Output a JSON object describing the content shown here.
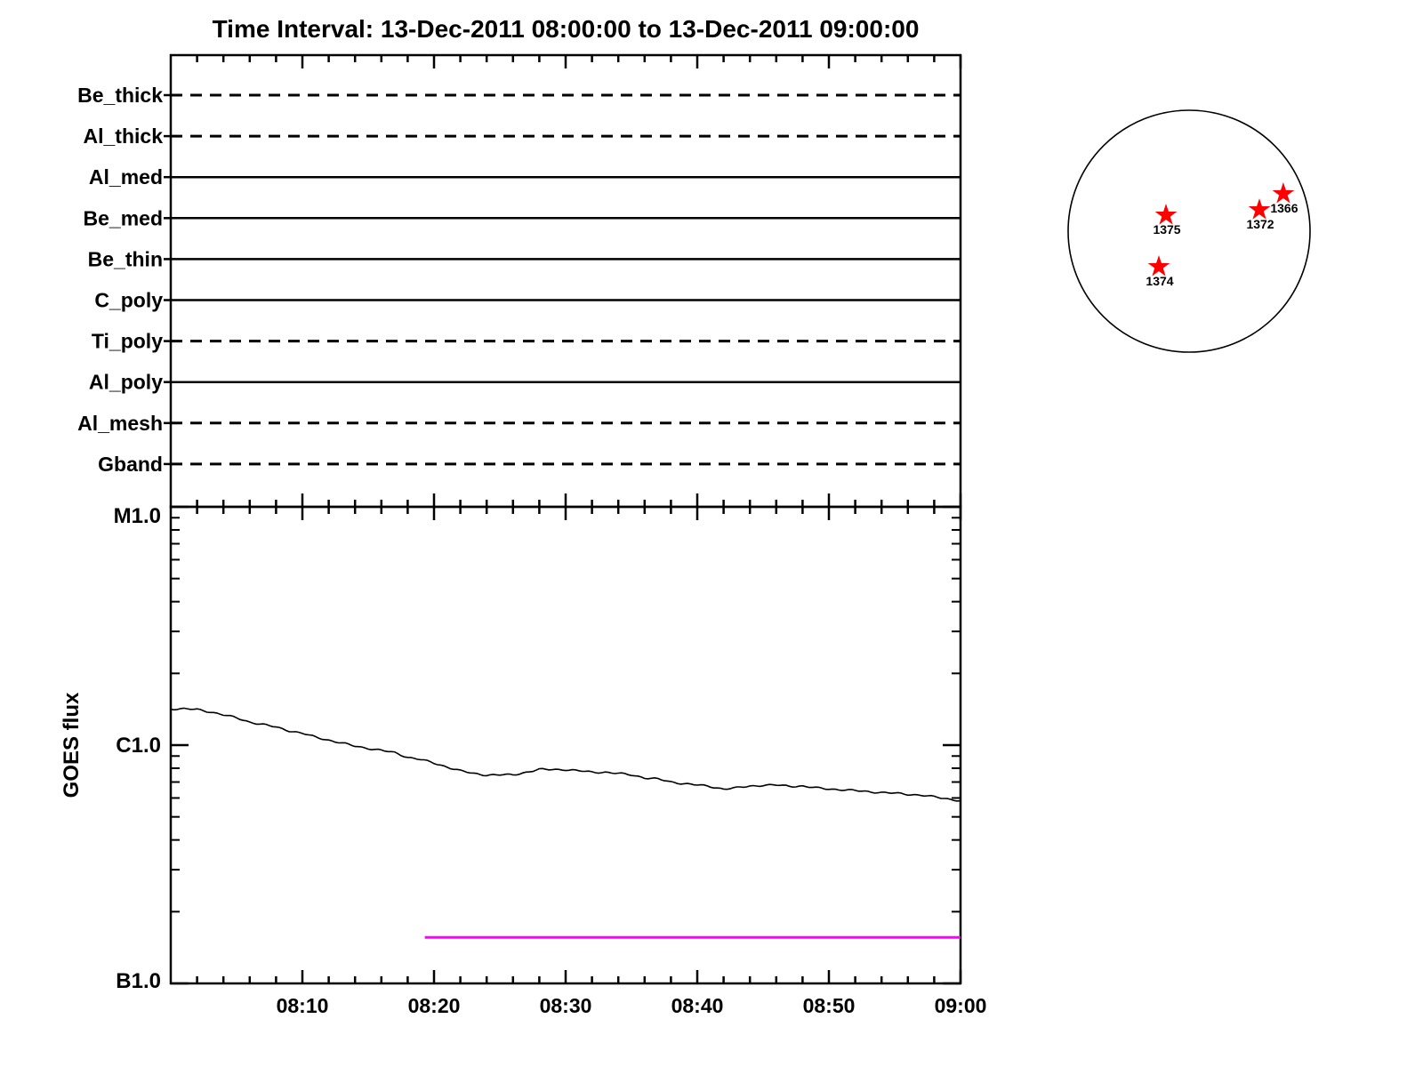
{
  "colors": {
    "axis": "#000000",
    "curve": "#000000",
    "event_line": "#FF00FF",
    "star_marker": "#FF0000",
    "background": "#FFFFFF"
  },
  "chart_data": {
    "type": "line",
    "title": "Time Interval: 13-Dec-2011 08:00:00 to 13-Dec-2011 09:00:00",
    "x_axis": {
      "start": "08:00",
      "end": "09:00",
      "tick_labels": [
        "08:10",
        "08:20",
        "08:30",
        "08:40",
        "08:50",
        "09:00"
      ],
      "tick_minutes": [
        10,
        20,
        30,
        40,
        50,
        60
      ],
      "minor_tick_step_minutes": 2
    },
    "y_axis": {
      "label": "GOES flux",
      "scale": "log",
      "tick_labels": [
        "M1.0",
        "C1.0",
        "B1.0"
      ],
      "tick_flux_wm2": [
        1e-05,
        1e-06,
        1e-07
      ]
    },
    "series": [
      {
        "name": "goes-xray-flux",
        "color": "#000000",
        "x_minutes": [
          0,
          1,
          2,
          3,
          4,
          5,
          6,
          7,
          8,
          9,
          10,
          11,
          12,
          13,
          14,
          15,
          16,
          17,
          18,
          19,
          20,
          21,
          22,
          23,
          24,
          25,
          26,
          27,
          28,
          29,
          30,
          31,
          32,
          33,
          34,
          35,
          36,
          37,
          38,
          39,
          40,
          41,
          42,
          43,
          44,
          45,
          46,
          47,
          48,
          49,
          50,
          51,
          52,
          53,
          54,
          55,
          56,
          57,
          58,
          59,
          60
        ],
        "flux_1e6_wm2": [
          1.42,
          1.42,
          1.41,
          1.38,
          1.34,
          1.3,
          1.25,
          1.22,
          1.19,
          1.15,
          1.12,
          1.08,
          1.05,
          1.02,
          0.99,
          0.97,
          0.95,
          0.93,
          0.89,
          0.87,
          0.84,
          0.81,
          0.78,
          0.76,
          0.75,
          0.75,
          0.75,
          0.77,
          0.79,
          0.79,
          0.79,
          0.78,
          0.77,
          0.77,
          0.76,
          0.75,
          0.73,
          0.72,
          0.7,
          0.69,
          0.68,
          0.67,
          0.655,
          0.661,
          0.673,
          0.679,
          0.679,
          0.673,
          0.673,
          0.661,
          0.655,
          0.65,
          0.644,
          0.638,
          0.633,
          0.628,
          0.622,
          0.617,
          0.606,
          0.595,
          0.585
        ]
      },
      {
        "name": "event-level-line",
        "color": "#FF00FF",
        "start_minute": 19.3,
        "end_minute": 60,
        "flux_1e6_wm2": 0.156
      }
    ],
    "filter_timeline": {
      "filters": [
        {
          "name": "Be_thick",
          "line_style": "dashed"
        },
        {
          "name": "Al_thick",
          "line_style": "dashed"
        },
        {
          "name": "Al_med",
          "line_style": "solid"
        },
        {
          "name": "Be_med",
          "line_style": "solid"
        },
        {
          "name": "Be_thin",
          "line_style": "solid"
        },
        {
          "name": "C_poly",
          "line_style": "solid"
        },
        {
          "name": "Ti_poly",
          "line_style": "dashed"
        },
        {
          "name": "Al_poly",
          "line_style": "solid"
        },
        {
          "name": "Al_mesh",
          "line_style": "dashed"
        },
        {
          "name": "Gband",
          "line_style": "dashed"
        }
      ]
    },
    "solar_disk": {
      "marker": "star",
      "marker_color": "#FF0000",
      "active_regions": [
        {
          "label": "1375",
          "x_disk": -0.191,
          "y_disk": -0.132
        },
        {
          "label": "1372",
          "x_disk": 0.581,
          "y_disk": -0.176
        },
        {
          "label": "1366",
          "x_disk": 0.779,
          "y_disk": -0.309
        },
        {
          "label": "1374",
          "x_disk": -0.25,
          "y_disk": 0.294
        }
      ]
    }
  }
}
